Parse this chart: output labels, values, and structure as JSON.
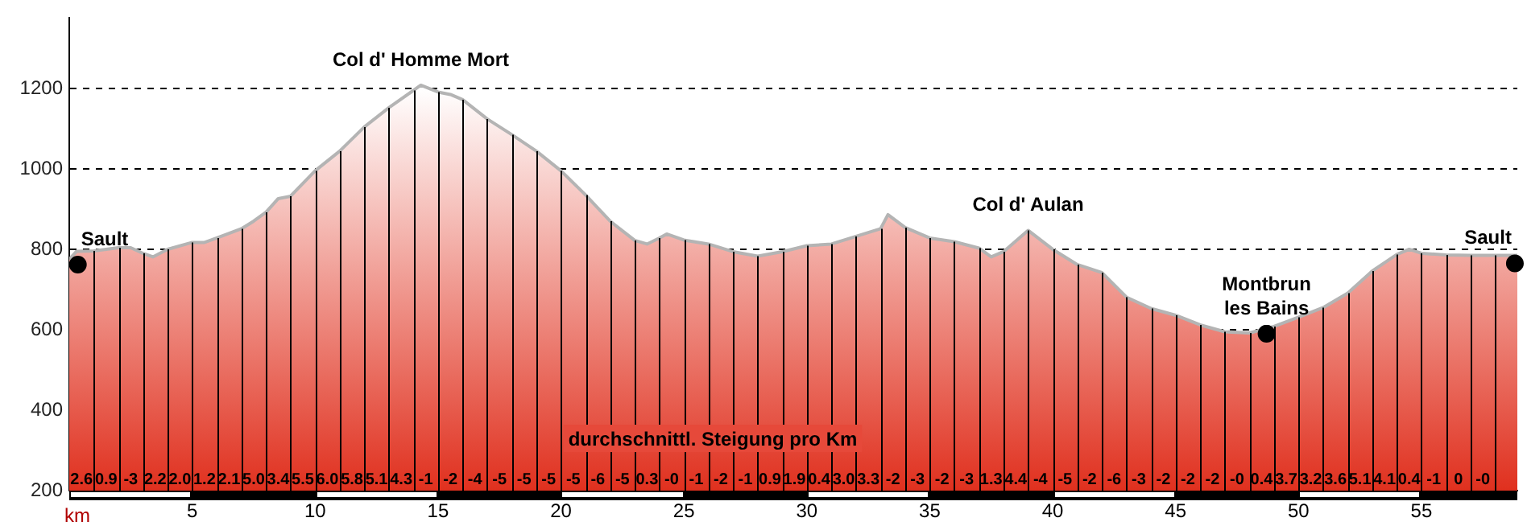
{
  "chart_data": {
    "type": "area",
    "xlabel": "km",
    "xlim": [
      0,
      58.9
    ],
    "xticks": [
      5,
      10,
      15,
      20,
      25,
      30,
      35,
      40,
      45,
      50,
      55
    ],
    "ylim": [
      200,
      1375
    ],
    "yticks": [
      200,
      400,
      600,
      800,
      1000,
      1200
    ],
    "grid": "y",
    "legend": false,
    "series": [
      {
        "color": "#e0301e",
        "x": [
          0,
          0.3,
          1,
          2,
          2.5,
          3,
          3.4,
          4,
          5,
          5.5,
          6,
          7,
          7.5,
          8,
          8.5,
          9,
          10,
          11,
          12,
          13,
          14,
          14.3,
          15,
          15.5,
          16,
          17,
          18,
          19,
          20,
          21,
          22,
          23,
          23.5,
          24,
          24.3,
          25,
          26,
          27,
          28,
          29,
          30,
          31,
          32,
          33,
          33.3,
          34,
          35,
          36,
          37,
          37.5,
          38,
          39,
          40,
          41,
          42,
          43,
          44,
          45,
          46,
          47,
          48,
          49,
          50,
          51,
          52,
          53,
          54,
          54.5,
          55,
          56,
          57,
          58,
          58.9
        ],
        "values": [
          775,
          795,
          796,
          804,
          804,
          790,
          781,
          800,
          817,
          817,
          828,
          851,
          870,
          892,
          926,
          932,
          995,
          1044,
          1104,
          1152,
          1195,
          1208,
          1191,
          1185,
          1172,
          1124,
          1085,
          1044,
          995,
          935,
          870,
          822,
          813,
          828,
          838,
          823,
          813,
          794,
          783,
          794,
          809,
          813,
          832,
          851,
          886,
          854,
          828,
          819,
          803,
          781,
          794,
          847,
          800,
          762,
          742,
          681,
          653,
          636,
          612,
          595,
          592,
          608,
          631,
          655,
          691,
          746,
          787,
          800,
          790,
          786,
          785,
          785,
          785
        ]
      },
      {
        "type": "scatter",
        "color": "#000000",
        "x": [
          0.35,
          48.7,
          58.8
        ],
        "values": [
          762,
          590,
          765
        ]
      }
    ],
    "annotations": [
      {
        "text": "Sault",
        "x": 0.35,
        "y": 762
      },
      {
        "text": "Col d' Homme Mort",
        "x": 14.3,
        "y": 1208
      },
      {
        "text": "Col d' Aulan",
        "x": 39,
        "y": 847
      },
      {
        "text": "Montbrun\nles Bains",
        "x": 48.7,
        "y": 590
      },
      {
        "text": "Sault",
        "x": 58.8,
        "y": 765
      },
      "durchschnittl. Steigung pro Km",
      {
        "text": "2.6",
        "x": 0.5,
        "y": 200
      },
      {
        "text": "0.9",
        "x": 1.5,
        "y": 200
      },
      {
        "text": "-3",
        "x": 2.5,
        "y": 200
      },
      {
        "text": "2.2",
        "x": 3.5,
        "y": 200
      },
      {
        "text": "2.0",
        "x": 4.5,
        "y": 200
      },
      {
        "text": "1.2",
        "x": 5.5,
        "y": 200
      },
      {
        "text": "2.1",
        "x": 6.5,
        "y": 200
      },
      {
        "text": "5.0",
        "x": 7.5,
        "y": 200
      },
      {
        "text": "3.4",
        "x": 8.5,
        "y": 200
      },
      {
        "text": "5.5",
        "x": 9.5,
        "y": 200
      },
      {
        "text": "6.0",
        "x": 10.5,
        "y": 200
      },
      {
        "text": "5.8",
        "x": 11.5,
        "y": 200
      },
      {
        "text": "5.1",
        "x": 12.5,
        "y": 200
      },
      {
        "text": "4.3",
        "x": 13.5,
        "y": 200
      },
      {
        "text": "-1",
        "x": 14.5,
        "y": 200
      },
      {
        "text": "-2",
        "x": 15.5,
        "y": 200
      },
      {
        "text": "-4",
        "x": 16.5,
        "y": 200
      },
      {
        "text": "-5",
        "x": 17.5,
        "y": 200
      },
      {
        "text": "-5",
        "x": 18.5,
        "y": 200
      },
      {
        "text": "-5",
        "x": 19.5,
        "y": 200
      },
      {
        "text": "-5",
        "x": 20.5,
        "y": 200
      },
      {
        "text": "-6",
        "x": 21.5,
        "y": 200
      },
      {
        "text": "-5",
        "x": 22.5,
        "y": 200
      },
      {
        "text": "0.3",
        "x": 23.5,
        "y": 200
      },
      {
        "text": "-0",
        "x": 24.5,
        "y": 200
      },
      {
        "text": "-1",
        "x": 25.5,
        "y": 200
      },
      {
        "text": "-2",
        "x": 26.5,
        "y": 200
      },
      {
        "text": "-1",
        "x": 27.5,
        "y": 200
      },
      {
        "text": "0.9",
        "x": 28.5,
        "y": 200
      },
      {
        "text": "1.9",
        "x": 29.5,
        "y": 200
      },
      {
        "text": "0.4",
        "x": 30.5,
        "y": 200
      },
      {
        "text": "3.0",
        "x": 31.5,
        "y": 200
      },
      {
        "text": "3.3",
        "x": 32.5,
        "y": 200
      },
      {
        "text": "-2",
        "x": 33.5,
        "y": 200
      },
      {
        "text": "-3",
        "x": 34.5,
        "y": 200
      },
      {
        "text": "-2",
        "x": 35.5,
        "y": 200
      },
      {
        "text": "-3",
        "x": 36.5,
        "y": 200
      },
      {
        "text": "1.3",
        "x": 37.5,
        "y": 200
      },
      {
        "text": "4.4",
        "x": 38.5,
        "y": 200
      },
      {
        "text": "-4",
        "x": 39.5,
        "y": 200
      },
      {
        "text": "-5",
        "x": 40.5,
        "y": 200
      },
      {
        "text": "-2",
        "x": 41.5,
        "y": 200
      },
      {
        "text": "-6",
        "x": 42.5,
        "y": 200
      },
      {
        "text": "-3",
        "x": 43.5,
        "y": 200
      },
      {
        "text": "-2",
        "x": 44.5,
        "y": 200
      },
      {
        "text": "-2",
        "x": 45.5,
        "y": 200
      },
      {
        "text": "-2",
        "x": 46.5,
        "y": 200
      },
      {
        "text": "-0",
        "x": 47.5,
        "y": 200
      },
      {
        "text": "0.4",
        "x": 48.5,
        "y": 200
      },
      {
        "text": "3.7",
        "x": 49.5,
        "y": 200
      },
      {
        "text": "3.2",
        "x": 50.5,
        "y": 200
      },
      {
        "text": "3.6",
        "x": 51.5,
        "y": 200
      },
      {
        "text": "5.1",
        "x": 52.5,
        "y": 200
      },
      {
        "text": "4.1",
        "x": 53.5,
        "y": 200
      },
      {
        "text": "0.4",
        "x": 54.5,
        "y": 200
      },
      {
        "text": "-1",
        "x": 55.5,
        "y": 200
      },
      {
        "text": "0",
        "x": 56.5,
        "y": 200
      },
      {
        "text": "-0",
        "x": 57.5,
        "y": 200
      }
    ]
  }
}
